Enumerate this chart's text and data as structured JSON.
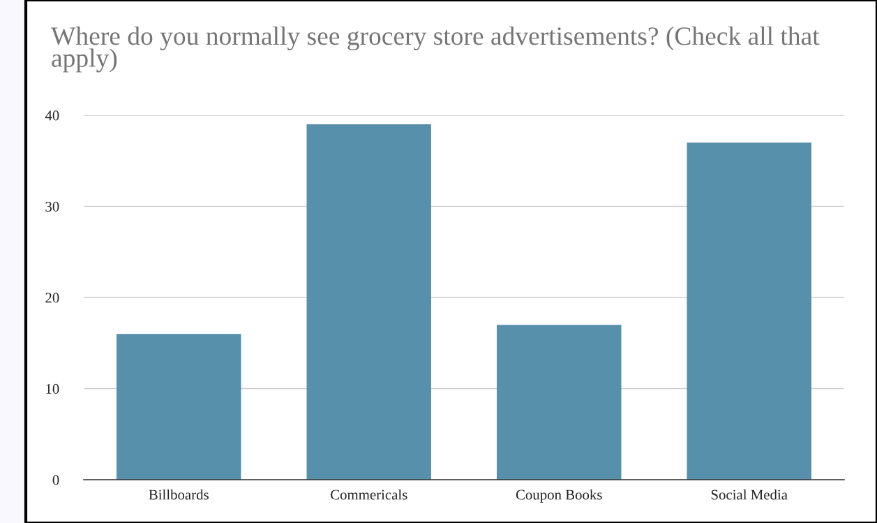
{
  "chart_data": {
    "type": "bar",
    "title": "Where do you normally see grocery store advertisements? (Check all that apply)",
    "categories": [
      "Billboards",
      "Commericals",
      "Coupon Books",
      "Social Media"
    ],
    "values": [
      16,
      39,
      17,
      37
    ],
    "color": "#5790ab",
    "ylim": [
      0,
      40
    ],
    "yticks": [
      0,
      10,
      20,
      30,
      40
    ],
    "grid": "y"
  }
}
